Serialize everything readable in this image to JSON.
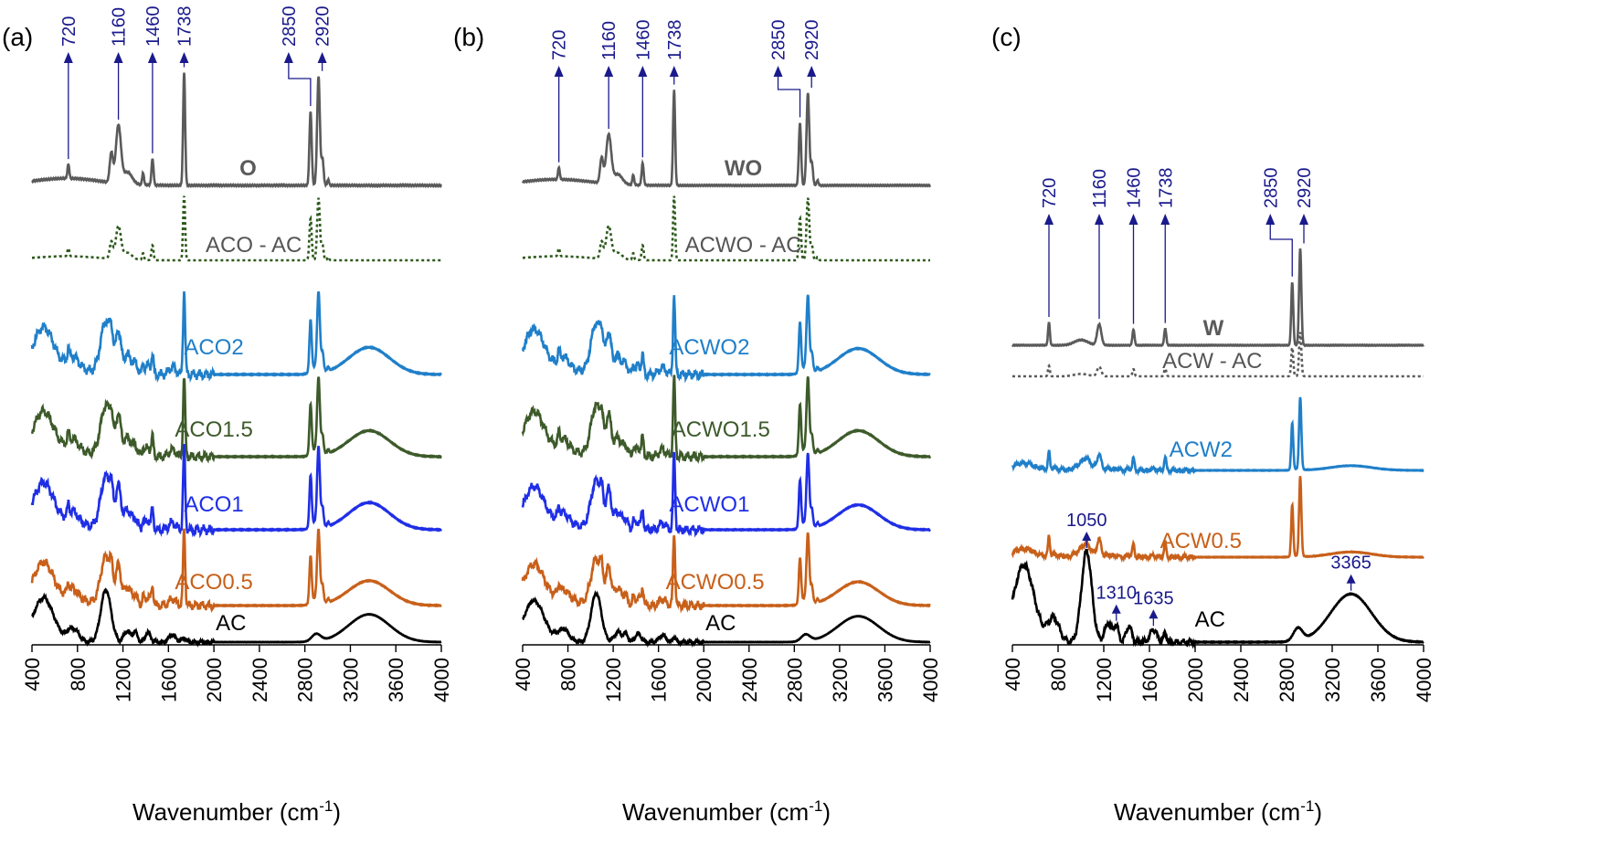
{
  "figure_title": "",
  "chart_data": [
    {
      "type": "line",
      "panel_label": "(a)",
      "xlabel_main": "Wavenumber (cm",
      "xlabel_sup": "-1",
      "xlabel_close": ")",
      "xlim": [
        400,
        4000
      ],
      "xticks": [
        400,
        800,
        1200,
        1600,
        2000,
        2400,
        2800,
        3200,
        3600,
        4000
      ],
      "peak_markers": [
        {
          "label": "720",
          "wavenumber": 720
        },
        {
          "label": "1160",
          "wavenumber": 1160
        },
        {
          "label": "1460",
          "wavenumber": 1460
        },
        {
          "label": "1738",
          "wavenumber": 1738
        },
        {
          "label": "2850",
          "wavenumber": 2850
        },
        {
          "label": "2920",
          "wavenumber": 2920
        }
      ],
      "series": [
        {
          "name": "O",
          "label": "O",
          "kind": "oil",
          "color": "#5a5a5a",
          "style": "solid",
          "label_x": 2300
        },
        {
          "name": "ACO - AC",
          "label": "ACO - AC",
          "kind": "diff",
          "color": "#2e5a1c",
          "label_color": "#555555",
          "style": "dotted",
          "label_x": 2350
        },
        {
          "name": "ACO2",
          "label": "ACO2",
          "kind": "composite",
          "color": "#1f7fc9",
          "style": "solid",
          "label_x": 2000
        },
        {
          "name": "ACO1.5",
          "label": "ACO1.5",
          "kind": "composite",
          "color": "#3d5a2a",
          "style": "solid",
          "label_x": 2000
        },
        {
          "name": "ACO1",
          "label": "ACO1",
          "kind": "composite",
          "color": "#1f2ee6",
          "style": "solid",
          "label_x": 2000
        },
        {
          "name": "ACO0.5",
          "label": "ACO0.5",
          "kind": "composite",
          "color": "#c8601a",
          "style": "solid",
          "label_x": 2000
        },
        {
          "name": "AC",
          "label": "AC",
          "kind": "ac",
          "color": "#000000",
          "style": "solid",
          "label_x": 2150
        }
      ],
      "peak_annotations": []
    },
    {
      "type": "line",
      "panel_label": "(b)",
      "xlabel_main": "Wavenumber (cm",
      "xlabel_sup": "-1",
      "xlabel_close": ")",
      "xlim": [
        400,
        4000
      ],
      "xticks": [
        400,
        800,
        1200,
        1600,
        2000,
        2400,
        2800,
        3200,
        3600,
        4000
      ],
      "peak_markers": [
        {
          "label": "720",
          "wavenumber": 720
        },
        {
          "label": "1160",
          "wavenumber": 1160
        },
        {
          "label": "1460",
          "wavenumber": 1460
        },
        {
          "label": "1738",
          "wavenumber": 1738
        },
        {
          "label": "2850",
          "wavenumber": 2850
        },
        {
          "label": "2920",
          "wavenumber": 2920
        }
      ],
      "series": [
        {
          "name": "WO",
          "label": "WO",
          "kind": "oil",
          "color": "#5a5a5a",
          "style": "solid",
          "label_x": 2350
        },
        {
          "name": "ACWO - AC",
          "label": "ACWO - AC",
          "kind": "diff",
          "color": "#2e5a1c",
          "label_color": "#555555",
          "style": "dotted",
          "label_x": 2350
        },
        {
          "name": "ACWO2",
          "label": "ACWO2",
          "kind": "composite",
          "color": "#1f7fc9",
          "style": "solid",
          "label_x": 2050
        },
        {
          "name": "ACWO1.5",
          "label": "ACWO1.5",
          "kind": "composite",
          "color": "#3d5a2a",
          "style": "solid",
          "label_x": 2150
        },
        {
          "name": "ACWO1",
          "label": "ACWO1",
          "kind": "composite",
          "color": "#1f2ee6",
          "style": "solid",
          "label_x": 2050
        },
        {
          "name": "ACWO0.5",
          "label": "ACWO0.5",
          "kind": "composite",
          "color": "#c8601a",
          "style": "solid",
          "label_x": 2100
        },
        {
          "name": "AC",
          "label": "AC",
          "kind": "ac",
          "color": "#000000",
          "style": "solid",
          "label_x": 2150
        }
      ],
      "peak_annotations": []
    },
    {
      "type": "line",
      "panel_label": "(c)",
      "xlabel_main": "Wavenumber (cm",
      "xlabel_sup": "-1",
      "xlabel_close": ")",
      "xlim": [
        400,
        4000
      ],
      "xticks": [
        400,
        800,
        1200,
        1600,
        2000,
        2400,
        2800,
        3200,
        3600,
        4000
      ],
      "peak_markers": [
        {
          "label": "720",
          "wavenumber": 720
        },
        {
          "label": "1160",
          "wavenumber": 1160
        },
        {
          "label": "1460",
          "wavenumber": 1460
        },
        {
          "label": "1738",
          "wavenumber": 1738
        },
        {
          "label": "2850",
          "wavenumber": 2850
        },
        {
          "label": "2920",
          "wavenumber": 2920
        }
      ],
      "series": [
        {
          "name": "W",
          "label": "W",
          "kind": "wax",
          "color": "#5a5a5a",
          "style": "solid",
          "label_x": 2160
        },
        {
          "name": "ACW - AC",
          "label": "ACW - AC",
          "kind": "waxdiff",
          "color": "#5a5a5a",
          "label_color": "#555555",
          "style": "dotted",
          "label_x": 2150
        },
        {
          "name": "ACW2",
          "label": "ACW2",
          "kind": "waxcomp",
          "color": "#1f7fc9",
          "style": "solid",
          "label_x": 2050
        },
        {
          "name": "ACW0.5",
          "label": "ACW0.5",
          "kind": "waxcomp",
          "color": "#c8601a",
          "style": "solid",
          "label_x": 2050
        },
        {
          "name": "AC",
          "label": "AC",
          "kind": "ac",
          "color": "#000000",
          "style": "solid",
          "label_x": 2130
        }
      ],
      "peak_annotations": [
        {
          "label": "1050",
          "wavenumber": 1050
        },
        {
          "label": "1310",
          "wavenumber": 1310
        },
        {
          "label": "1635",
          "wavenumber": 1635
        },
        {
          "label": "3365",
          "wavenumber": 3365
        }
      ]
    }
  ]
}
